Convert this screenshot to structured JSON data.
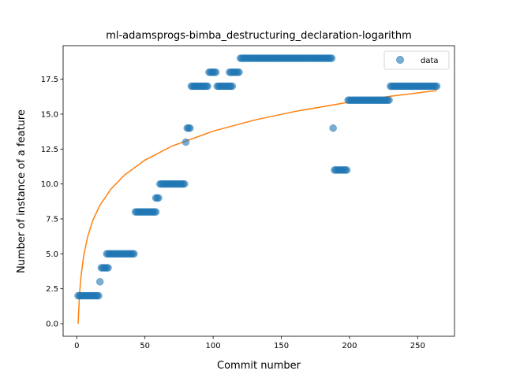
{
  "chart_data": {
    "type": "scatter",
    "title": "ml-adamsprogs-bimba_destructuring_declaration-logarithm",
    "xlabel": "Commit number",
    "ylabel": "Number of instance of a feature",
    "xlim": [
      -10,
      277
    ],
    "ylim": [
      -0.9,
      19.9
    ],
    "xticks": [
      0,
      50,
      100,
      150,
      200,
      250
    ],
    "yticks": [
      0.0,
      2.5,
      5.0,
      7.5,
      10.0,
      12.5,
      15.0,
      17.5
    ],
    "ytick_labels": [
      "0.0",
      "2.5",
      "5.0",
      "7.5",
      "10.0",
      "12.5",
      "15.0",
      "17.5"
    ],
    "legend": {
      "position": "top-right",
      "entries": [
        "data"
      ]
    },
    "colors": {
      "data": "#1f77b4",
      "fit": "#ff7f0e"
    },
    "series": [
      {
        "name": "data",
        "style": "markers",
        "segments": [
          {
            "x_start": 1,
            "x_end": 16,
            "y": 2
          },
          {
            "x_start": 17,
            "x_end": 17,
            "y": 3
          },
          {
            "x_start": 18,
            "x_end": 23,
            "y": 4
          },
          {
            "x_start": 22,
            "x_end": 42,
            "y": 5
          },
          {
            "x_start": 43,
            "x_end": 58,
            "y": 8
          },
          {
            "x_start": 58,
            "x_end": 60,
            "y": 9
          },
          {
            "x_start": 61,
            "x_end": 79,
            "y": 10
          },
          {
            "x_start": 80,
            "x_end": 80,
            "y": 13
          },
          {
            "x_start": 81,
            "x_end": 83,
            "y": 14
          },
          {
            "x_start": 84,
            "x_end": 96,
            "y": 17
          },
          {
            "x_start": 97,
            "x_end": 102,
            "y": 18
          },
          {
            "x_start": 103,
            "x_end": 114,
            "y": 17
          },
          {
            "x_start": 112,
            "x_end": 119,
            "y": 18
          },
          {
            "x_start": 120,
            "x_end": 187,
            "y": 19
          },
          {
            "x_start": 188,
            "x_end": 188,
            "y": 14
          },
          {
            "x_start": 189,
            "x_end": 198,
            "y": 11
          },
          {
            "x_start": 199,
            "x_end": 229,
            "y": 16
          },
          {
            "x_start": 230,
            "x_end": 264,
            "y": 17
          }
        ]
      },
      {
        "name": "",
        "style": "line",
        "model": "logarithmic",
        "x": [
          1,
          2,
          3,
          5,
          8,
          12,
          17,
          25,
          35,
          50,
          70,
          100,
          130,
          160,
          200,
          230,
          264
        ],
        "y": [
          0.0,
          2.08,
          3.29,
          4.82,
          6.23,
          7.45,
          8.48,
          9.63,
          10.64,
          11.71,
          12.72,
          13.78,
          14.57,
          15.19,
          15.86,
          16.28,
          16.69
        ]
      }
    ]
  }
}
